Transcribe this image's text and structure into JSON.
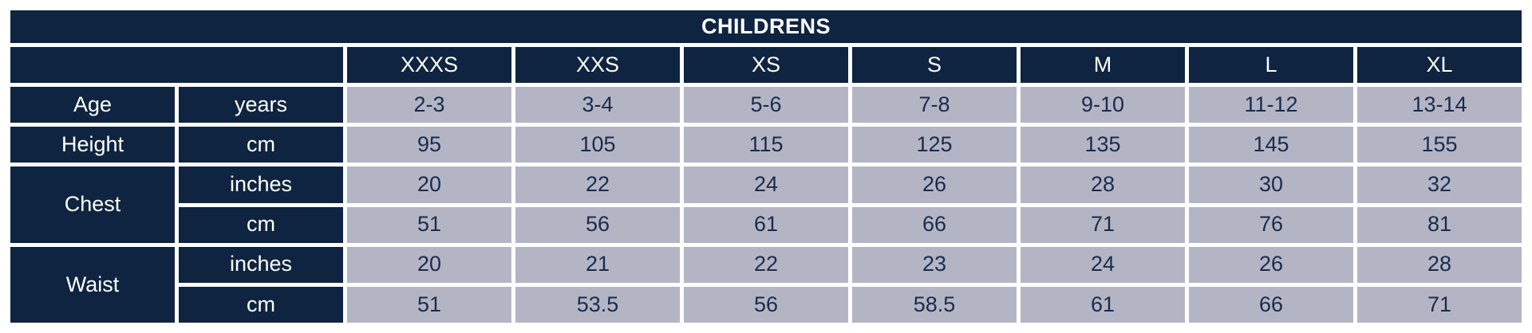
{
  "colors": {
    "header_bg": "#0f2440",
    "header_text": "#ffffff",
    "cell_bg": "#b4b5c4",
    "cell_text": "#1a2b4d",
    "border_color": "#ffffff"
  },
  "chart_data": {
    "type": "table",
    "title": "CHILDRENS",
    "columns": [
      "XXXS",
      "XXS",
      "XS",
      "S",
      "M",
      "L",
      "XL"
    ],
    "rows": [
      {
        "label": "Age",
        "unit": "years",
        "values": [
          "2-3",
          "3-4",
          "5-6",
          "7-8",
          "9-10",
          "11-12",
          "13-14"
        ]
      },
      {
        "label": "Height",
        "unit": "cm",
        "values": [
          "95",
          "105",
          "115",
          "125",
          "135",
          "145",
          "155"
        ]
      },
      {
        "label": "Chest",
        "unit": "inches",
        "values": [
          "20",
          "22",
          "24",
          "26",
          "28",
          "30",
          "32"
        ]
      },
      {
        "label": "Chest",
        "unit": "cm",
        "values": [
          "51",
          "56",
          "61",
          "66",
          "71",
          "76",
          "81"
        ]
      },
      {
        "label": "Waist",
        "unit": "inches",
        "values": [
          "20",
          "21",
          "22",
          "23",
          "24",
          "26",
          "28"
        ]
      },
      {
        "label": "Waist",
        "unit": "cm",
        "values": [
          "51",
          "53.5",
          "56",
          "58.5",
          "61",
          "66",
          "71"
        ]
      }
    ],
    "layout": {
      "title_row_spans_all_columns": true,
      "label_column_merged_for": [
        "Chest",
        "Waist"
      ],
      "grid": "white borders between all cells"
    }
  }
}
